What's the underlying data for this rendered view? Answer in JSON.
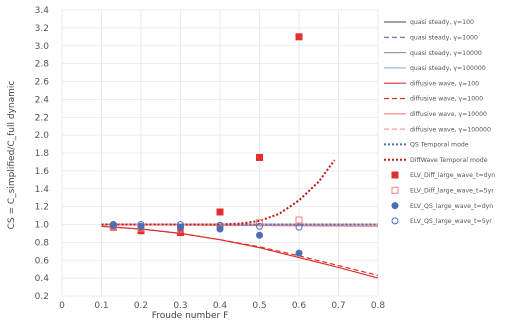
{
  "chart_data": {
    "type": "line",
    "xlabel": "Froude number F",
    "ylabel": "CS = C_simplified/C_full dynamic",
    "xlim": [
      0,
      0.8
    ],
    "ylim": [
      0.2,
      3.4
    ],
    "xticks": [
      "0",
      "0.1",
      "0.2",
      "0.3",
      "0.4",
      "0.5",
      "0.6",
      "0.7",
      "0.8"
    ],
    "yticks": [
      "0.2",
      "0.4",
      "0.6",
      "0.8",
      "1.0",
      "1.2",
      "1.4",
      "1.6",
      "1.8",
      "2.0",
      "2.2",
      "2.4",
      "2.6",
      "2.8",
      "3.0",
      "3.2",
      "3.4"
    ],
    "grid": true,
    "legend_position": "right",
    "colors": {
      "blue": "#4a6fb5",
      "lightblue": "#9fb6dc",
      "red": "#e03030",
      "grid": "#e6e6e6"
    },
    "series": [
      {
        "name": "quasi steady, γ=100",
        "kind": "line",
        "color": "#6a6a6a",
        "dash": "solid",
        "x": [
          0.1,
          0.8
        ],
        "y": [
          1.0,
          1.0
        ]
      },
      {
        "name": "quasi steady, γ=1000",
        "kind": "line",
        "color": "#4a6fb5",
        "dash": "dash",
        "x": [
          0.1,
          0.8
        ],
        "y": [
          1.0,
          1.0
        ]
      },
      {
        "name": "quasi steady, γ=10000",
        "kind": "line",
        "color": "#9a9a9a",
        "dash": "solid",
        "x": [
          0.1,
          0.8
        ],
        "y": [
          1.0,
          1.0
        ]
      },
      {
        "name": "quasi steady, γ=100000",
        "kind": "line",
        "color": "#9fb6dc",
        "dash": "solid",
        "x": [
          0.1,
          0.8
        ],
        "y": [
          1.0,
          1.0
        ]
      },
      {
        "name": "diffusive wave, γ=100",
        "kind": "line",
        "color": "#e03030",
        "dash": "solid",
        "x": [
          0.1,
          0.2,
          0.3,
          0.4,
          0.5,
          0.6,
          0.7,
          0.8
        ],
        "y": [
          0.98,
          0.95,
          0.9,
          0.83,
          0.74,
          0.63,
          0.52,
          0.4
        ]
      },
      {
        "name": "diffusive wave, γ=1000",
        "kind": "line",
        "color": "#e03030",
        "dash": "dash",
        "x": [
          0.1,
          0.2,
          0.3,
          0.4,
          0.5,
          0.6,
          0.7,
          0.8
        ],
        "y": [
          0.98,
          0.95,
          0.9,
          0.83,
          0.75,
          0.65,
          0.54,
          0.43
        ]
      },
      {
        "name": "diffusive wave, γ=10000",
        "kind": "line",
        "color": "#f08080",
        "dash": "solid",
        "x": [
          0.1,
          0.8
        ],
        "y": [
          1.0,
          0.98
        ]
      },
      {
        "name": "diffusive wave, γ=100000",
        "kind": "line",
        "color": "#f4a0a0",
        "dash": "dash",
        "x": [
          0.1,
          0.8
        ],
        "y": [
          1.0,
          1.0
        ]
      },
      {
        "name": "QS Temporal mode",
        "kind": "line",
        "color": "#4a6fb5",
        "dash": "dot",
        "x": [
          0.1,
          0.8
        ],
        "y": [
          1.0,
          1.0
        ]
      },
      {
        "name": "DiffWave Temporal mode",
        "kind": "line",
        "color": "#c01818",
        "dash": "dot",
        "x": [
          0.1,
          0.2,
          0.3,
          0.4,
          0.45,
          0.5,
          0.55,
          0.6,
          0.65,
          0.69
        ],
        "y": [
          1.0,
          1.0,
          1.0,
          1.0,
          1.01,
          1.04,
          1.12,
          1.27,
          1.48,
          1.72
        ]
      },
      {
        "name": "ELV_Diff_large_wave_t=dyn",
        "kind": "marker",
        "marker": "square",
        "filled": true,
        "color": "#e03030",
        "x": [
          0.13,
          0.2,
          0.3,
          0.4,
          0.5,
          0.6
        ],
        "y": [
          0.97,
          0.93,
          0.91,
          1.14,
          1.75,
          3.1
        ]
      },
      {
        "name": "ELV_Diff_large_wave_t=5yr",
        "kind": "marker",
        "marker": "square",
        "filled": false,
        "color": "#f08080",
        "x": [
          0.13,
          0.2,
          0.3,
          0.4,
          0.5,
          0.6
        ],
        "y": [
          0.98,
          0.96,
          0.95,
          0.98,
          1.02,
          1.05
        ]
      },
      {
        "name": "ELV_QS_large_wave_t=dyn",
        "kind": "marker",
        "marker": "circle",
        "filled": true,
        "color": "#4a6fb5",
        "x": [
          0.13,
          0.2,
          0.3,
          0.4,
          0.5,
          0.6
        ],
        "y": [
          0.99,
          0.98,
          0.97,
          0.95,
          0.88,
          0.68
        ]
      },
      {
        "name": "ELV_QS_large_wave_t=5yr",
        "kind": "marker",
        "marker": "circle",
        "filled": false,
        "color": "#4a6fb5",
        "x": [
          0.13,
          0.2,
          0.3,
          0.4,
          0.5,
          0.6
        ],
        "y": [
          1.0,
          1.0,
          1.0,
          0.99,
          0.98,
          0.97
        ]
      }
    ]
  }
}
